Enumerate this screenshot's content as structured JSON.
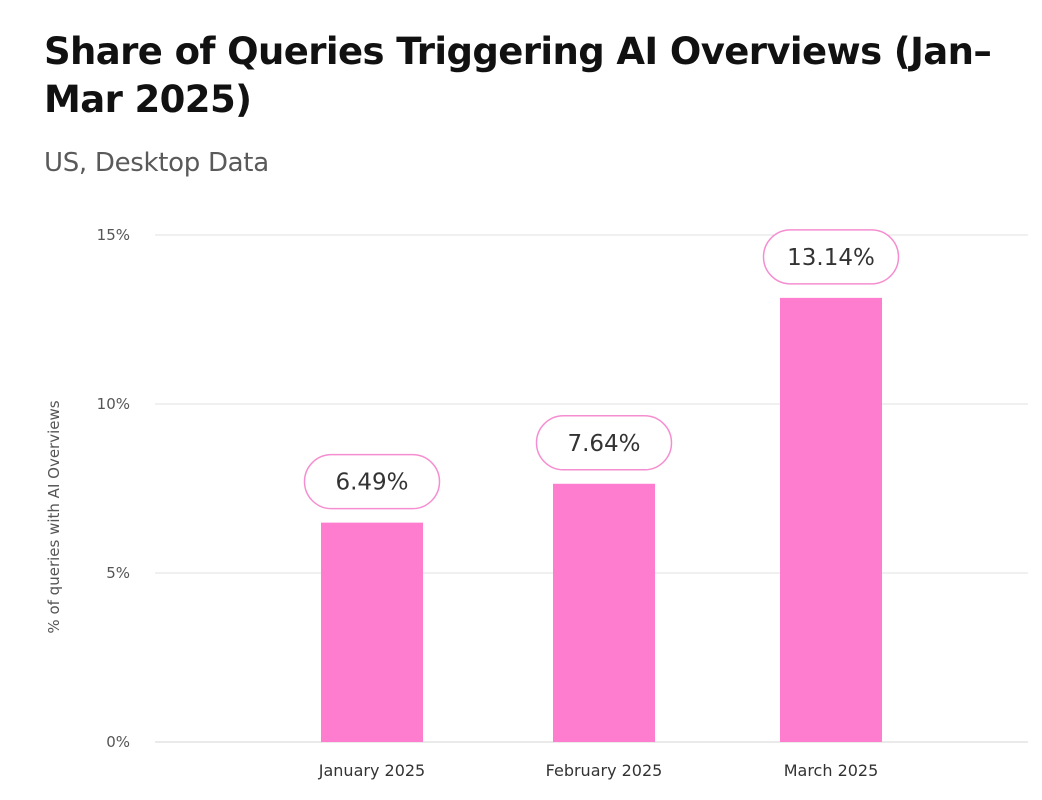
{
  "chart_data": {
    "type": "bar",
    "title": "Share of Queries Triggering AI Overviews (Jan–Mar 2025)",
    "subtitle": "US, Desktop Data",
    "xlabel": "",
    "ylabel": "% of queries with AI Overviews",
    "categories": [
      "January 2025",
      "February 2025",
      "March 2025"
    ],
    "values": [
      6.49,
      7.64,
      13.14
    ],
    "data_labels": [
      "6.49%",
      "7.64%",
      "13.14%"
    ],
    "ylim": [
      0,
      15
    ],
    "yticks": [
      0,
      5,
      10,
      15
    ],
    "ytick_labels": [
      "0%",
      "5%",
      "10%",
      "15%"
    ],
    "grid": true,
    "bar_color": "#ff7dce",
    "label_border_color": "#f58ed0"
  }
}
